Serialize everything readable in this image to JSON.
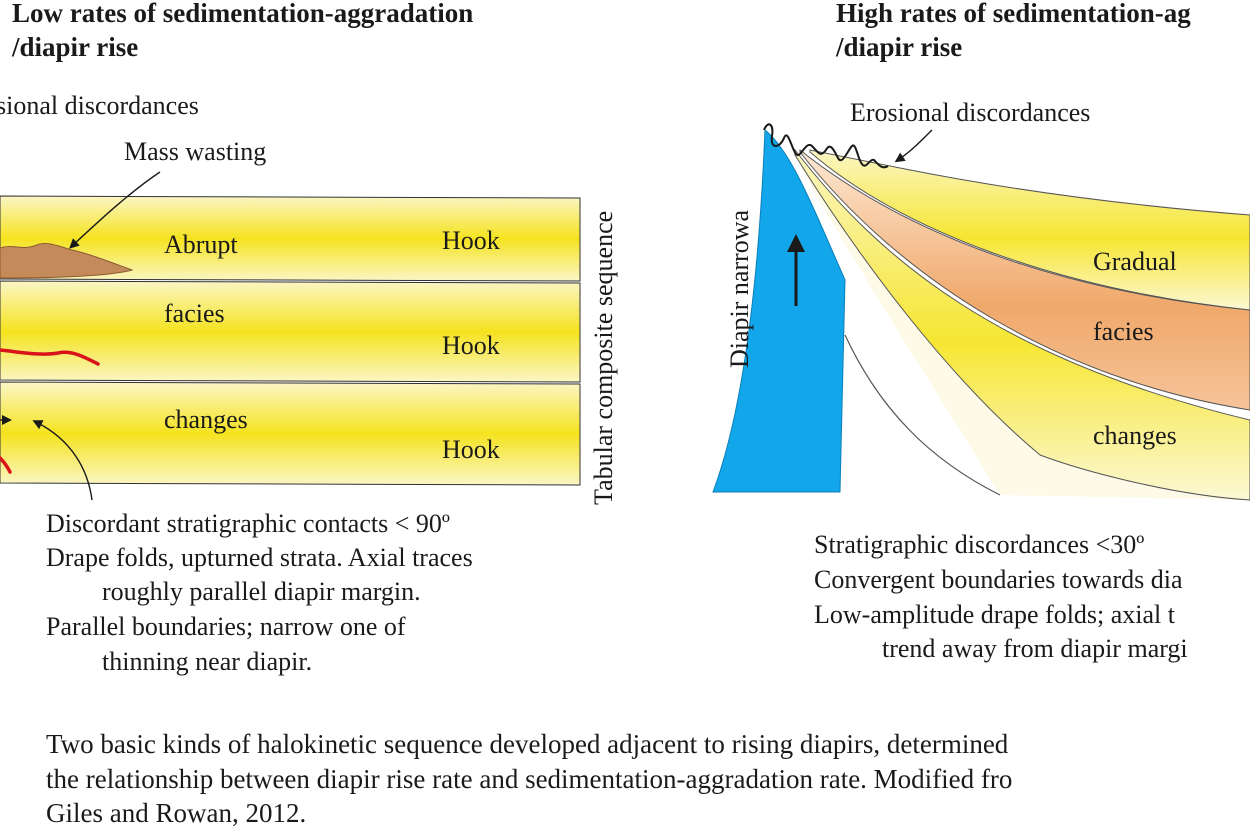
{
  "left_panel": {
    "title_line1": "Low rates of sedimentation-aggradation",
    "title_line2": "/diapir rise",
    "erosional_label": "sional discordances",
    "mass_wasting_label": "Mass wasting",
    "facies_words": [
      "Abrupt",
      "facies",
      "changes"
    ],
    "hook_labels": [
      "Hook",
      "Hook",
      "Hook"
    ],
    "sequence_label": "Tabular composite sequence",
    "description": [
      "Discordant stratigraphic contacts < 90º",
      "Drape folds, upturned strata. Axial traces",
      "roughly parallel diapir margin.",
      "Parallel boundaries; narrow one of",
      "thinning near diapir."
    ]
  },
  "right_panel": {
    "title_line1": "High rates of sedimentation-ag",
    "title_line2": "/diapir rise",
    "erosional_label": "Erosional discordances",
    "diapir_label": "Diapir narrowa",
    "facies_words": [
      "Gradual",
      "facies",
      "changes"
    ],
    "description": [
      "Stratigraphic discordances <30º",
      "Convergent boundaries towards dia",
      "Low-amplitude drape folds; axial t",
      "trend away from diapir margi"
    ]
  },
  "caption": [
    "Two basic kinds of halokinetic sequence developed adjacent to rising diapirs, determined",
    "the relationship between diapir rise rate and sedimentation-aggradation rate. Modified fro",
    "Giles and Rowan, 2012."
  ],
  "colors": {
    "strata_yellow": "#f5e31f",
    "strata_pale": "#fbf6c6",
    "orange_facies": "#f0a86a",
    "diapir_blue": "#12a6ea",
    "mass_wasting_brown": "#c48a5a",
    "red_line": "#d8141a"
  }
}
